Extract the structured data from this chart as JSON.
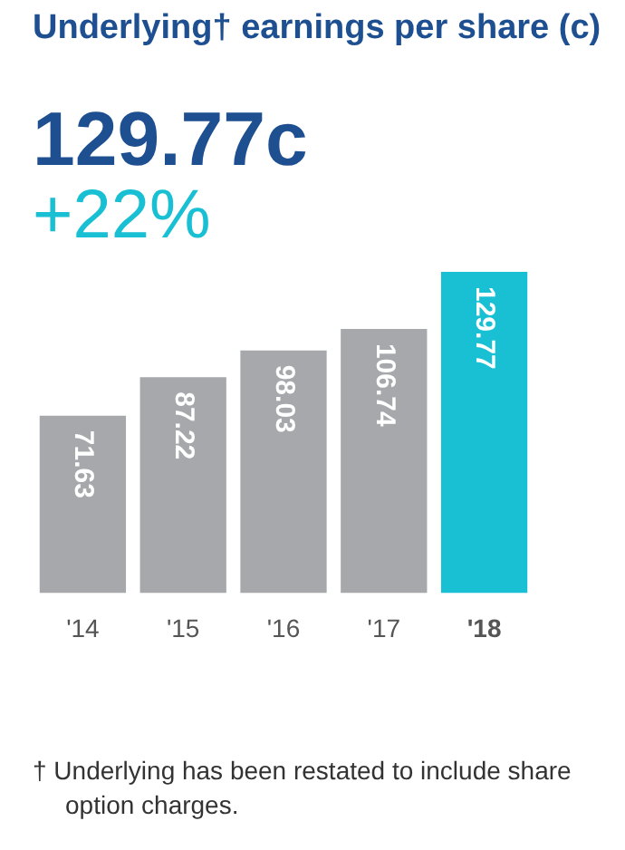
{
  "chart_data": {
    "type": "bar",
    "title": "Underlying† earnings per share (c)",
    "categories": [
      "'14",
      "'15",
      "'16",
      "'17",
      "'18"
    ],
    "values": [
      71.63,
      87.22,
      98.03,
      106.74,
      129.77
    ],
    "colors": [
      "#a6a8ab",
      "#a6a8ab",
      "#a6a8ab",
      "#a6a8ab",
      "#19bfd3"
    ],
    "data_labels": true,
    "annotations": [
      "129.77c",
      "+22%",
      "† Underlying has been restated to include share option charges."
    ]
  }
}
